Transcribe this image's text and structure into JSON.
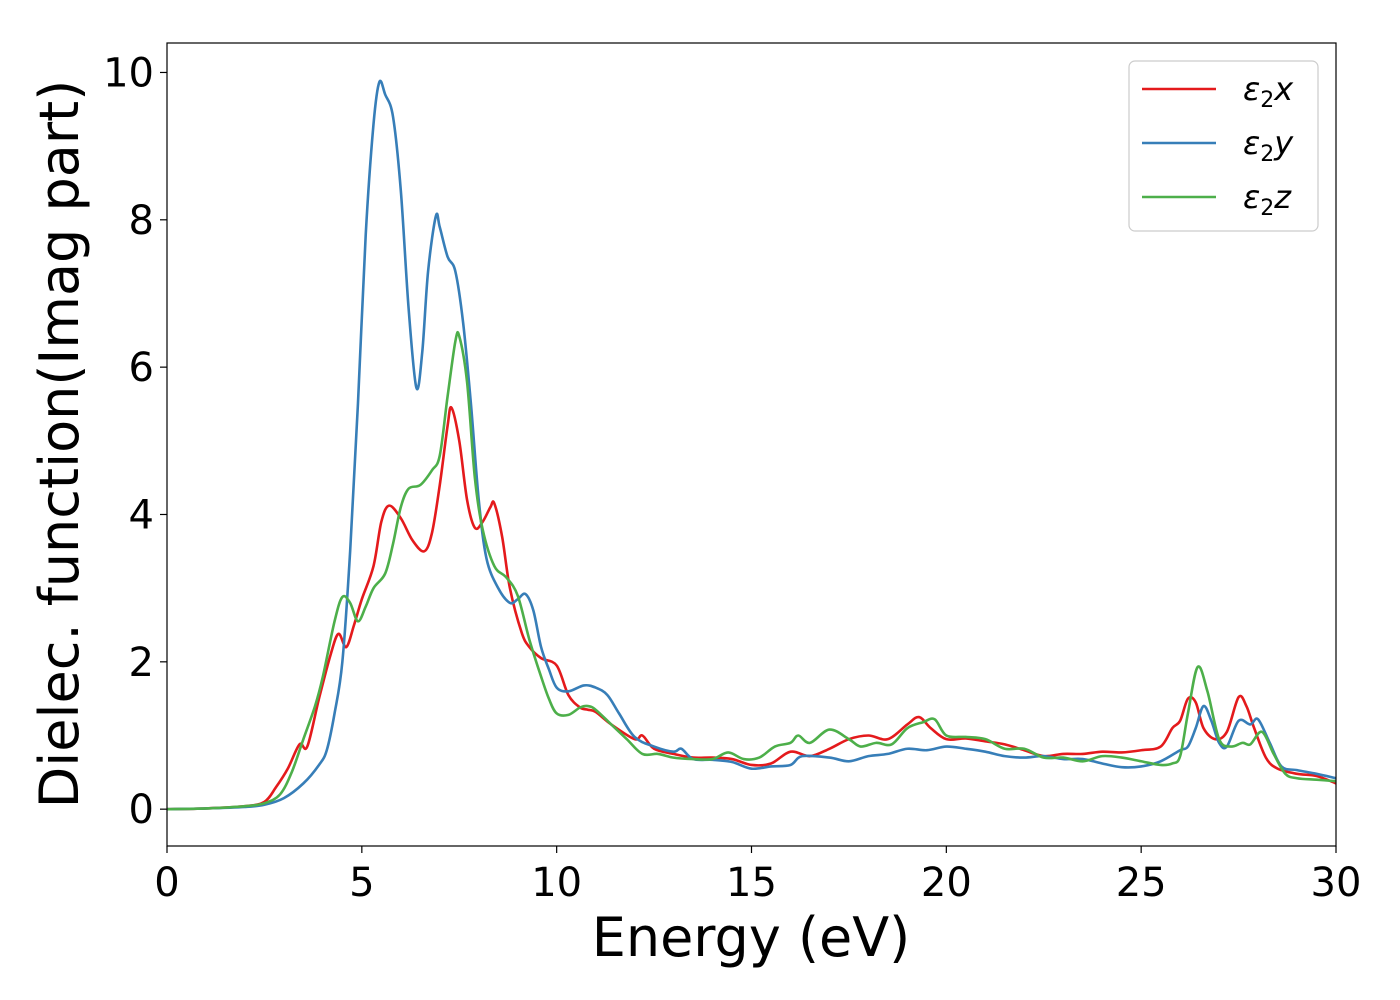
{
  "chart_data": {
    "type": "line",
    "xlabel": "Energy (eV)",
    "ylabel": "Dielec. function(Imag part)",
    "xlim": [
      0,
      30
    ],
    "ylim": [
      -0.5,
      10.4
    ],
    "xticks": [
      0,
      5,
      10,
      15,
      20,
      25,
      30
    ],
    "yticks": [
      0,
      2,
      4,
      6,
      8,
      10
    ],
    "legend_position": "top-right",
    "grid": false,
    "series": [
      {
        "name": "ε₂x",
        "legend_base": "ε",
        "legend_sub": "2",
        "legend_var": "x",
        "color": "#e41a1c",
        "points": [
          [
            0,
            0
          ],
          [
            1,
            0.01
          ],
          [
            2,
            0.04
          ],
          [
            2.5,
            0.1
          ],
          [
            2.8,
            0.3
          ],
          [
            3.1,
            0.55
          ],
          [
            3.4,
            0.88
          ],
          [
            3.6,
            0.85
          ],
          [
            3.9,
            1.5
          ],
          [
            4.2,
            2.1
          ],
          [
            4.4,
            2.38
          ],
          [
            4.6,
            2.2
          ],
          [
            4.8,
            2.5
          ],
          [
            5.0,
            2.85
          ],
          [
            5.3,
            3.3
          ],
          [
            5.5,
            3.9
          ],
          [
            5.7,
            4.12
          ],
          [
            6.0,
            3.95
          ],
          [
            6.3,
            3.65
          ],
          [
            6.6,
            3.5
          ],
          [
            6.8,
            3.75
          ],
          [
            7.0,
            4.4
          ],
          [
            7.2,
            5.2
          ],
          [
            7.3,
            5.45
          ],
          [
            7.5,
            5.0
          ],
          [
            7.7,
            4.2
          ],
          [
            7.9,
            3.82
          ],
          [
            8.1,
            3.9
          ],
          [
            8.3,
            4.1
          ],
          [
            8.4,
            4.15
          ],
          [
            8.6,
            3.7
          ],
          [
            8.8,
            3.0
          ],
          [
            9.1,
            2.4
          ],
          [
            9.3,
            2.2
          ],
          [
            9.6,
            2.05
          ],
          [
            10.0,
            1.95
          ],
          [
            10.3,
            1.55
          ],
          [
            10.6,
            1.38
          ],
          [
            10.8,
            1.35
          ],
          [
            11.0,
            1.32
          ],
          [
            11.4,
            1.15
          ],
          [
            12.0,
            0.95
          ],
          [
            12.2,
            1.0
          ],
          [
            12.5,
            0.82
          ],
          [
            13.0,
            0.75
          ],
          [
            13.5,
            0.7
          ],
          [
            14.0,
            0.7
          ],
          [
            14.5,
            0.68
          ],
          [
            15.0,
            0.6
          ],
          [
            15.5,
            0.62
          ],
          [
            16.0,
            0.78
          ],
          [
            16.5,
            0.72
          ],
          [
            17.0,
            0.82
          ],
          [
            17.5,
            0.95
          ],
          [
            18.0,
            1.0
          ],
          [
            18.5,
            0.95
          ],
          [
            19.0,
            1.15
          ],
          [
            19.3,
            1.25
          ],
          [
            19.6,
            1.1
          ],
          [
            20.0,
            0.95
          ],
          [
            20.5,
            0.96
          ],
          [
            21.0,
            0.92
          ],
          [
            21.5,
            0.88
          ],
          [
            22.0,
            0.8
          ],
          [
            22.5,
            0.72
          ],
          [
            23.0,
            0.75
          ],
          [
            23.5,
            0.75
          ],
          [
            24.0,
            0.78
          ],
          [
            24.5,
            0.77
          ],
          [
            25.0,
            0.8
          ],
          [
            25.5,
            0.85
          ],
          [
            25.8,
            1.1
          ],
          [
            26.0,
            1.2
          ],
          [
            26.2,
            1.5
          ],
          [
            26.4,
            1.45
          ],
          [
            26.6,
            1.1
          ],
          [
            26.9,
            0.95
          ],
          [
            27.2,
            1.05
          ],
          [
            27.5,
            1.52
          ],
          [
            27.7,
            1.4
          ],
          [
            27.9,
            1.1
          ],
          [
            28.2,
            0.7
          ],
          [
            28.5,
            0.55
          ],
          [
            29.0,
            0.48
          ],
          [
            29.5,
            0.45
          ],
          [
            30.0,
            0.35
          ]
        ]
      },
      {
        "name": "ε₂y",
        "legend_base": "ε",
        "legend_sub": "2",
        "legend_var": "y",
        "color": "#377eb8",
        "points": [
          [
            0,
            0
          ],
          [
            1,
            0.01
          ],
          [
            2,
            0.03
          ],
          [
            2.5,
            0.06
          ],
          [
            3.0,
            0.15
          ],
          [
            3.5,
            0.35
          ],
          [
            3.9,
            0.6
          ],
          [
            4.1,
            0.8
          ],
          [
            4.3,
            1.3
          ],
          [
            4.5,
            2.0
          ],
          [
            4.7,
            3.5
          ],
          [
            4.9,
            5.5
          ],
          [
            5.1,
            7.8
          ],
          [
            5.3,
            9.3
          ],
          [
            5.45,
            9.87
          ],
          [
            5.6,
            9.7
          ],
          [
            5.8,
            9.4
          ],
          [
            6.0,
            8.4
          ],
          [
            6.2,
            6.8
          ],
          [
            6.4,
            5.72
          ],
          [
            6.55,
            6.2
          ],
          [
            6.7,
            7.3
          ],
          [
            6.9,
            8.05
          ],
          [
            7.0,
            7.9
          ],
          [
            7.2,
            7.5
          ],
          [
            7.4,
            7.3
          ],
          [
            7.6,
            6.6
          ],
          [
            7.8,
            5.5
          ],
          [
            8.0,
            4.2
          ],
          [
            8.2,
            3.4
          ],
          [
            8.5,
            3.0
          ],
          [
            8.8,
            2.8
          ],
          [
            9.0,
            2.85
          ],
          [
            9.2,
            2.92
          ],
          [
            9.4,
            2.7
          ],
          [
            9.6,
            2.2
          ],
          [
            9.8,
            1.9
          ],
          [
            10.0,
            1.65
          ],
          [
            10.3,
            1.6
          ],
          [
            10.7,
            1.68
          ],
          [
            11.0,
            1.65
          ],
          [
            11.3,
            1.55
          ],
          [
            11.6,
            1.3
          ],
          [
            12.0,
            0.98
          ],
          [
            12.5,
            0.85
          ],
          [
            13.0,
            0.78
          ],
          [
            13.2,
            0.82
          ],
          [
            13.5,
            0.68
          ],
          [
            14.0,
            0.67
          ],
          [
            14.5,
            0.64
          ],
          [
            15.0,
            0.55
          ],
          [
            15.5,
            0.58
          ],
          [
            16.0,
            0.6
          ],
          [
            16.3,
            0.72
          ],
          [
            17.0,
            0.7
          ],
          [
            17.5,
            0.65
          ],
          [
            18.0,
            0.72
          ],
          [
            18.5,
            0.75
          ],
          [
            19.0,
            0.82
          ],
          [
            19.5,
            0.8
          ],
          [
            20.0,
            0.85
          ],
          [
            20.5,
            0.82
          ],
          [
            21.0,
            0.78
          ],
          [
            21.5,
            0.72
          ],
          [
            22.0,
            0.7
          ],
          [
            22.5,
            0.72
          ],
          [
            23.0,
            0.68
          ],
          [
            23.5,
            0.68
          ],
          [
            24.0,
            0.62
          ],
          [
            24.5,
            0.57
          ],
          [
            25.0,
            0.58
          ],
          [
            25.5,
            0.65
          ],
          [
            26.0,
            0.8
          ],
          [
            26.2,
            0.85
          ],
          [
            26.4,
            1.1
          ],
          [
            26.6,
            1.4
          ],
          [
            26.8,
            1.2
          ],
          [
            27.0,
            0.9
          ],
          [
            27.2,
            0.85
          ],
          [
            27.5,
            1.2
          ],
          [
            27.8,
            1.15
          ],
          [
            28.0,
            1.22
          ],
          [
            28.3,
            0.9
          ],
          [
            28.6,
            0.58
          ],
          [
            29.0,
            0.53
          ],
          [
            29.5,
            0.48
          ],
          [
            30.0,
            0.42
          ]
        ]
      },
      {
        "name": "ε₂z",
        "legend_base": "ε",
        "legend_sub": "2",
        "legend_var": "z",
        "color": "#4daf4a",
        "points": [
          [
            0,
            0
          ],
          [
            1,
            0.01
          ],
          [
            2,
            0.04
          ],
          [
            2.5,
            0.08
          ],
          [
            2.9,
            0.2
          ],
          [
            3.2,
            0.5
          ],
          [
            3.5,
            0.95
          ],
          [
            3.8,
            1.4
          ],
          [
            4.0,
            1.8
          ],
          [
            4.3,
            2.55
          ],
          [
            4.5,
            2.88
          ],
          [
            4.7,
            2.8
          ],
          [
            4.9,
            2.55
          ],
          [
            5.1,
            2.75
          ],
          [
            5.3,
            3.0
          ],
          [
            5.6,
            3.2
          ],
          [
            5.8,
            3.6
          ],
          [
            6.0,
            4.1
          ],
          [
            6.2,
            4.35
          ],
          [
            6.5,
            4.4
          ],
          [
            6.8,
            4.6
          ],
          [
            7.0,
            4.8
          ],
          [
            7.2,
            5.6
          ],
          [
            7.4,
            6.35
          ],
          [
            7.5,
            6.42
          ],
          [
            7.7,
            5.8
          ],
          [
            7.9,
            4.5
          ],
          [
            8.1,
            3.8
          ],
          [
            8.4,
            3.3
          ],
          [
            8.7,
            3.15
          ],
          [
            9.0,
            2.9
          ],
          [
            9.3,
            2.3
          ],
          [
            9.6,
            1.8
          ],
          [
            9.8,
            1.5
          ],
          [
            10.0,
            1.3
          ],
          [
            10.3,
            1.28
          ],
          [
            10.6,
            1.38
          ],
          [
            10.8,
            1.4
          ],
          [
            11.0,
            1.35
          ],
          [
            11.4,
            1.15
          ],
          [
            11.8,
            0.95
          ],
          [
            12.2,
            0.75
          ],
          [
            12.6,
            0.75
          ],
          [
            13.0,
            0.7
          ],
          [
            13.5,
            0.68
          ],
          [
            14.0,
            0.68
          ],
          [
            14.4,
            0.77
          ],
          [
            14.8,
            0.68
          ],
          [
            15.2,
            0.7
          ],
          [
            15.6,
            0.85
          ],
          [
            16.0,
            0.9
          ],
          [
            16.2,
            1.0
          ],
          [
            16.5,
            0.9
          ],
          [
            17.0,
            1.08
          ],
          [
            17.5,
            0.95
          ],
          [
            17.8,
            0.85
          ],
          [
            18.2,
            0.9
          ],
          [
            18.6,
            0.88
          ],
          [
            19.0,
            1.1
          ],
          [
            19.4,
            1.18
          ],
          [
            19.7,
            1.22
          ],
          [
            20.0,
            1.0
          ],
          [
            20.5,
            0.98
          ],
          [
            21.0,
            0.95
          ],
          [
            21.5,
            0.82
          ],
          [
            22.0,
            0.82
          ],
          [
            22.5,
            0.7
          ],
          [
            23.0,
            0.7
          ],
          [
            23.5,
            0.65
          ],
          [
            24.0,
            0.72
          ],
          [
            24.5,
            0.7
          ],
          [
            25.0,
            0.65
          ],
          [
            25.5,
            0.6
          ],
          [
            25.8,
            0.62
          ],
          [
            26.0,
            0.72
          ],
          [
            26.2,
            1.3
          ],
          [
            26.45,
            1.93
          ],
          [
            26.7,
            1.6
          ],
          [
            27.0,
            0.95
          ],
          [
            27.3,
            0.85
          ],
          [
            27.6,
            0.9
          ],
          [
            27.8,
            0.88
          ],
          [
            28.1,
            1.05
          ],
          [
            28.4,
            0.75
          ],
          [
            28.7,
            0.48
          ],
          [
            29.0,
            0.42
          ],
          [
            29.5,
            0.4
          ],
          [
            30.0,
            0.38
          ]
        ]
      }
    ]
  }
}
